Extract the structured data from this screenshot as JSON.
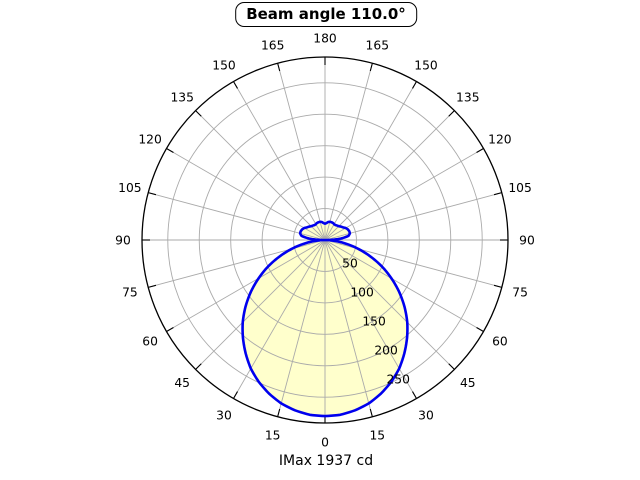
{
  "chart_data": {
    "type": "line",
    "subtype": "polar-photometric",
    "title": "Beam angle 110.0°",
    "footer": "IMax 1937 cd",
    "imax_cd": 1937,
    "beam_angle_deg": 110.0,
    "grid": true,
    "legend": "none",
    "r_axis": {
      "tick_values": [
        50,
        100,
        150,
        200,
        250
      ],
      "tick_labels": [
        "50",
        "100",
        "150",
        "200",
        "250"
      ],
      "max": 291,
      "label_angle_deg": 22.5
    },
    "theta_axis": {
      "step_deg": 15,
      "zero_position": "bottom",
      "ticks": [
        {
          "angle": 0,
          "label": "0"
        },
        {
          "angle": 15,
          "label": "15"
        },
        {
          "angle": 30,
          "label": "30"
        },
        {
          "angle": 45,
          "label": "45"
        },
        {
          "angle": 60,
          "label": "60"
        },
        {
          "angle": 75,
          "label": "75"
        },
        {
          "angle": 90,
          "label": "90"
        },
        {
          "angle": 105,
          "label": "105"
        },
        {
          "angle": 120,
          "label": "120"
        },
        {
          "angle": 135,
          "label": "135"
        },
        {
          "angle": 150,
          "label": "150"
        },
        {
          "angle": 165,
          "label": "165"
        },
        {
          "angle": 180,
          "label": "180"
        },
        {
          "angle": 195,
          "label": "165"
        },
        {
          "angle": 210,
          "label": "150"
        },
        {
          "angle": 225,
          "label": "135"
        },
        {
          "angle": 240,
          "label": "120"
        },
        {
          "angle": 255,
          "label": "105"
        },
        {
          "angle": 270,
          "label": "90"
        },
        {
          "angle": 285,
          "label": "75"
        },
        {
          "angle": 300,
          "label": "60"
        },
        {
          "angle": 315,
          "label": "45"
        },
        {
          "angle": 330,
          "label": "30"
        },
        {
          "angle": 345,
          "label": "15"
        }
      ]
    },
    "series": [
      {
        "name": "luminous-intensity-distribution",
        "symmetric": true,
        "angles_deg": [
          0,
          5,
          10,
          15,
          20,
          25,
          30,
          35,
          40,
          45,
          50,
          55,
          60,
          65,
          70,
          75,
          80,
          85,
          90,
          95,
          100,
          105,
          110,
          115,
          120,
          125,
          130,
          135,
          140,
          145,
          150,
          155,
          160,
          165,
          170,
          175,
          180
        ],
        "intensity": [
          280,
          279,
          275,
          269,
          260,
          249,
          236,
          220,
          203,
          185,
          165,
          144,
          122,
          100,
          77,
          55,
          34,
          15,
          0,
          25,
          38,
          41,
          41,
          40,
          38,
          35,
          33,
          31,
          30,
          29,
          29,
          30,
          30,
          30,
          29,
          27,
          26
        ]
      }
    ],
    "colors": {
      "curve": "#0000ee",
      "fill": "#ffffcc",
      "grid": "#aaaaaa",
      "axis": "#000000",
      "background": "#ffffff"
    }
  }
}
